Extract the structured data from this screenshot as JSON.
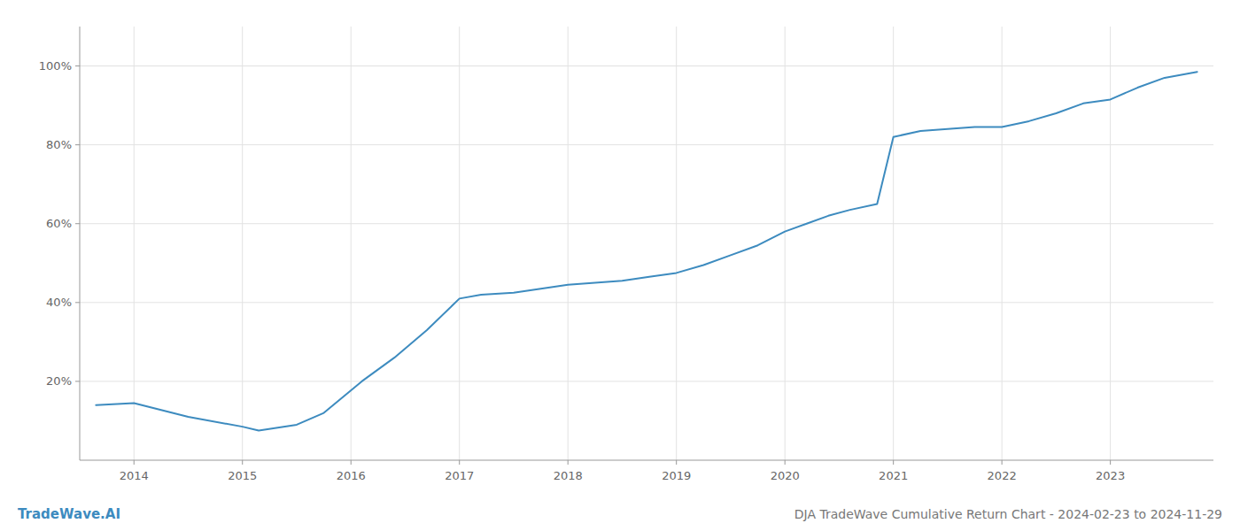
{
  "chart_data": {
    "type": "line",
    "title": "DJA TradeWave Cumulative Return Chart - 2024-02-23 to 2024-11-29",
    "annotations": [
      "TradeWave.AI"
    ],
    "color": "#3d8bbf",
    "grid": true,
    "x": [
      2013.65,
      2014.0,
      2014.5,
      2015.0,
      2015.15,
      2015.5,
      2015.75,
      2016.1,
      2016.4,
      2016.7,
      2017.0,
      2017.2,
      2017.5,
      2017.75,
      2018.0,
      2018.25,
      2018.5,
      2018.75,
      2019.0,
      2019.25,
      2019.5,
      2019.75,
      2020.0,
      2020.2,
      2020.4,
      2020.6,
      2020.85,
      2021.0,
      2021.25,
      2021.5,
      2021.75,
      2022.0,
      2022.25,
      2022.5,
      2022.75,
      2023.0,
      2023.25,
      2023.5,
      2023.8
    ],
    "values": [
      14.0,
      14.5,
      11.0,
      8.5,
      7.5,
      9.0,
      12.0,
      20.0,
      26.0,
      33.0,
      41.0,
      42.0,
      42.5,
      43.5,
      44.5,
      45.0,
      45.5,
      46.5,
      47.5,
      49.5,
      52.0,
      54.5,
      58.0,
      60.0,
      62.0,
      63.5,
      65.0,
      82.0,
      83.5,
      84.0,
      84.5,
      84.5,
      86.0,
      88.0,
      90.5,
      91.5,
      94.5,
      97.0,
      98.5
    ],
    "xlim": [
      2013.5,
      2023.95
    ],
    "ylim": [
      0,
      110
    ],
    "xticks": [
      2014,
      2015,
      2016,
      2017,
      2018,
      2019,
      2020,
      2021,
      2022,
      2023
    ],
    "yticks": [
      {
        "value": 20,
        "label": "20%"
      },
      {
        "value": 40,
        "label": "40%"
      },
      {
        "value": 60,
        "label": "60%"
      },
      {
        "value": 80,
        "label": "80%"
      },
      {
        "value": 100,
        "label": "100%"
      }
    ]
  }
}
